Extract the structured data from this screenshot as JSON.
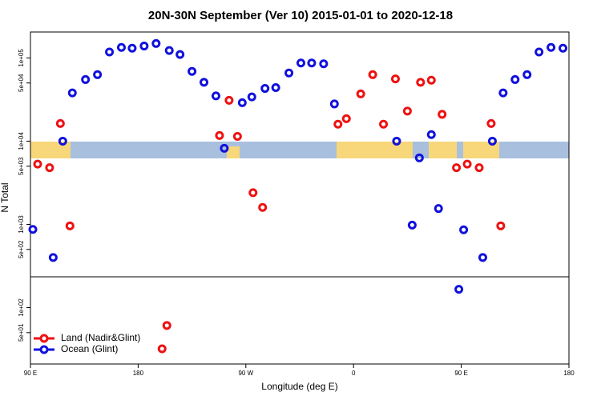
{
  "chart_data": {
    "type": "scatter",
    "title": "20N-30N September (Ver 10)   2015-01-01 to 2020-12-18",
    "xlabel": "Longitude (deg E)",
    "ylabel": "N Total",
    "ylog": true,
    "xlim": [
      90,
      540
    ],
    "ylim": [
      21,
      205000
    ],
    "xticks": [
      {
        "value": 90,
        "label": "90 E"
      },
      180,
      {
        "value": 270,
        "label": "90 W"
      },
      {
        "value": 360,
        "label": "0"
      },
      {
        "value": 450,
        "label": "90 E"
      },
      {
        "value": 540,
        "label": "180"
      }
    ],
    "yticks": [
      {
        "value": 50,
        "label": "5e+01"
      },
      {
        "value": 100,
        "label": "1e+02"
      },
      {
        "value": 500,
        "label": "5e+02"
      },
      {
        "value": 1000,
        "label": "1e+03"
      },
      {
        "value": 5000,
        "label": "5e+03"
      },
      {
        "value": 10000,
        "label": "1e+04"
      },
      {
        "value": 50000,
        "label": "5e+04"
      },
      {
        "value": 100000,
        "label": "1e+05"
      }
    ],
    "legend": "lower left",
    "series": [
      {
        "name": "Land (Nadir&Glint)",
        "color": "#ee1111",
        "x": [
          96,
          106,
          115,
          123,
          200,
          204,
          248,
          256,
          263,
          276,
          284,
          347,
          354,
          366,
          376,
          385,
          395,
          405,
          416,
          425,
          434,
          446,
          455,
          465,
          475,
          483
        ],
        "values": [
          5300,
          4800,
          16300,
          960,
          32,
          61,
          11700,
          31000,
          11400,
          2400,
          1600,
          16000,
          18600,
          37000,
          63000,
          16000,
          56000,
          23000,
          51000,
          54000,
          21000,
          4800,
          5300,
          4800,
          16300,
          960
        ]
      },
      {
        "name": "Ocean (Glint)",
        "color": "#1111dd",
        "x": [
          92,
          109,
          117,
          125,
          136,
          146,
          156,
          166,
          175,
          185,
          195,
          206,
          215,
          225,
          235,
          245,
          252,
          267,
          275,
          286,
          295,
          306,
          316,
          325,
          335,
          344,
          396,
          409,
          415,
          425,
          431,
          448,
          452,
          468,
          476,
          485,
          495,
          505,
          515,
          525,
          535
        ],
        "values": [
          870,
          400,
          10000,
          38000,
          55000,
          63000,
          118000,
          134000,
          131000,
          139000,
          149000,
          123000,
          110000,
          69000,
          51000,
          35000,
          8200,
          29000,
          34000,
          43000,
          44000,
          66000,
          87000,
          87000,
          85000,
          28000,
          10000,
          980,
          6300,
          12000,
          1550,
          166,
          860,
          400,
          10000,
          38000,
          55000,
          63000,
          118000,
          134000,
          131000
        ]
      }
    ]
  }
}
